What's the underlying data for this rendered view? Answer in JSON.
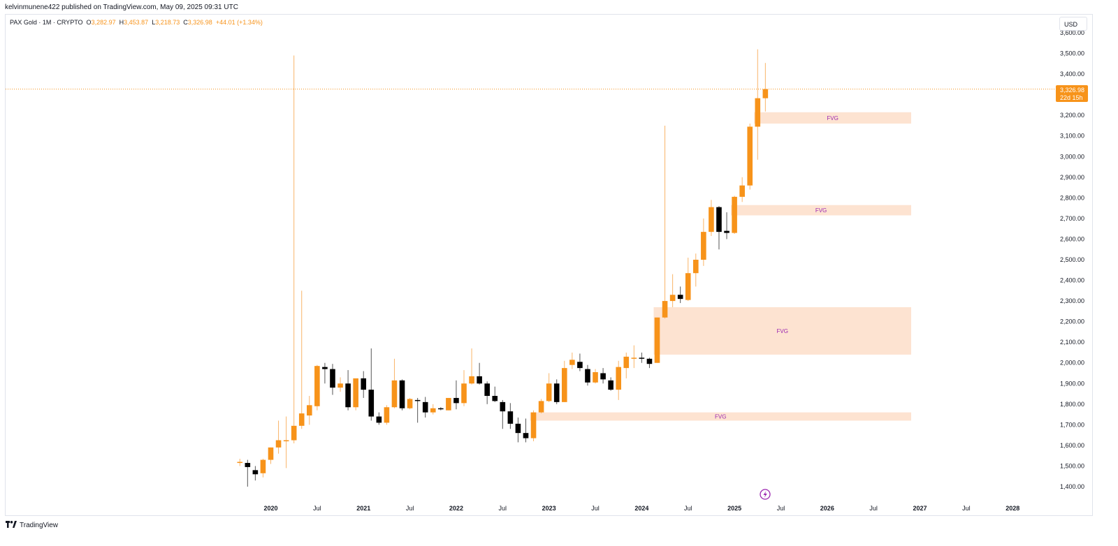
{
  "header": {
    "published": "kelvinmunene422 published on TradingView.com, May 09, 2025 09:31 UTC"
  },
  "legend": {
    "symbol": "PAX Gold · 1M · CRYPTO",
    "o_label": "O",
    "o": "3,282.97",
    "h_label": "H",
    "h": "3,453.87",
    "l_label": "L",
    "l": "3,218.73",
    "c_label": "C",
    "c": "3,326.98",
    "change": "+44.01 (+1.34%)"
  },
  "currency_button": "USD",
  "price_tag": {
    "price": "3,326.98",
    "countdown": "22d 15h"
  },
  "footer": {
    "logo_icon": "tradingview-logo-icon",
    "brand": "TradingView"
  },
  "colors": {
    "up": "#f7931a",
    "down": "#000000",
    "fvg": "#fde3d1",
    "fvg_text": "#9c27b0",
    "price_line": "#f7931a"
  },
  "chart_data": {
    "type": "candlestick",
    "title": "PAX Gold · 1M · CRYPTO",
    "interval": "1M",
    "ylim": [
      1350,
      3650
    ],
    "y_ticks": [
      "1,400.00",
      "1,500.00",
      "1,600.00",
      "1,700.00",
      "1,800.00",
      "1,900.00",
      "2,000.00",
      "2,100.00",
      "2,200.00",
      "2,300.00",
      "2,400.00",
      "2,500.00",
      "2,600.00",
      "2,700.00",
      "2,800.00",
      "2,900.00",
      "3,000.00",
      "3,100.00",
      "3,200.00",
      "3,300.00",
      "3,400.00",
      "3,500.00",
      "3,600.00"
    ],
    "y_tick_values": [
      1400,
      1500,
      1600,
      1700,
      1800,
      1900,
      2000,
      2100,
      2200,
      2300,
      2400,
      2500,
      2600,
      2700,
      2800,
      2900,
      3000,
      3100,
      3200,
      3300,
      3400,
      3500,
      3600
    ],
    "x_ticks": [
      {
        "label": "2020",
        "month": "2020-01"
      },
      {
        "label": "Jul",
        "month": "2020-07"
      },
      {
        "label": "2021",
        "month": "2021-01"
      },
      {
        "label": "Jul",
        "month": "2021-07"
      },
      {
        "label": "2022",
        "month": "2022-01"
      },
      {
        "label": "Jul",
        "month": "2022-07"
      },
      {
        "label": "2023",
        "month": "2023-01"
      },
      {
        "label": "Jul",
        "month": "2023-07"
      },
      {
        "label": "2024",
        "month": "2024-01"
      },
      {
        "label": "Jul",
        "month": "2024-07"
      },
      {
        "label": "2025",
        "month": "2025-01"
      },
      {
        "label": "Jul",
        "month": "2025-07"
      },
      {
        "label": "2026",
        "month": "2026-01"
      },
      {
        "label": "Jul",
        "month": "2026-07"
      },
      {
        "label": "2027",
        "month": "2027-01"
      },
      {
        "label": "Jul",
        "month": "2027-07"
      },
      {
        "label": "2028",
        "month": "2028-01"
      }
    ],
    "candles": [
      {
        "t": "2019-09",
        "o": 1515,
        "h": 1535,
        "l": 1500,
        "c": 1520
      },
      {
        "t": "2019-10",
        "o": 1515,
        "h": 1530,
        "l": 1400,
        "c": 1495
      },
      {
        "t": "2019-11",
        "o": 1480,
        "h": 1500,
        "l": 1430,
        "c": 1460
      },
      {
        "t": "2019-12",
        "o": 1465,
        "h": 1535,
        "l": 1445,
        "c": 1530
      },
      {
        "t": "2020-01",
        "o": 1530,
        "h": 1590,
        "l": 1510,
        "c": 1590
      },
      {
        "t": "2020-02",
        "o": 1590,
        "h": 1720,
        "l": 1560,
        "c": 1625
      },
      {
        "t": "2020-03",
        "o": 1620,
        "h": 1740,
        "l": 1490,
        "c": 1625
      },
      {
        "t": "2020-04",
        "o": 1625,
        "h": 3490,
        "l": 1610,
        "c": 1695
      },
      {
        "t": "2020-05",
        "o": 1695,
        "h": 2350,
        "l": 1680,
        "c": 1755
      },
      {
        "t": "2020-06",
        "o": 1745,
        "h": 1840,
        "l": 1700,
        "c": 1795
      },
      {
        "t": "2020-07",
        "o": 1790,
        "h": 1990,
        "l": 1770,
        "c": 1985
      },
      {
        "t": "2020-08",
        "o": 1980,
        "h": 2000,
        "l": 1900,
        "c": 1970
      },
      {
        "t": "2020-09",
        "o": 1970,
        "h": 1995,
        "l": 1845,
        "c": 1880
      },
      {
        "t": "2020-10",
        "o": 1880,
        "h": 1930,
        "l": 1860,
        "c": 1900
      },
      {
        "t": "2020-11",
        "o": 1900,
        "h": 1965,
        "l": 1770,
        "c": 1785
      },
      {
        "t": "2020-12",
        "o": 1785,
        "h": 1920,
        "l": 1770,
        "c": 1925
      },
      {
        "t": "2021-01",
        "o": 1925,
        "h": 1960,
        "l": 1830,
        "c": 1870
      },
      {
        "t": "2021-02",
        "o": 1870,
        "h": 2070,
        "l": 1720,
        "c": 1740
      },
      {
        "t": "2021-03",
        "o": 1740,
        "h": 1760,
        "l": 1700,
        "c": 1710
      },
      {
        "t": "2021-04",
        "o": 1710,
        "h": 1795,
        "l": 1700,
        "c": 1785
      },
      {
        "t": "2021-05",
        "o": 1785,
        "h": 2020,
        "l": 1780,
        "c": 1915
      },
      {
        "t": "2021-06",
        "o": 1915,
        "h": 1920,
        "l": 1770,
        "c": 1780
      },
      {
        "t": "2021-07",
        "o": 1780,
        "h": 1830,
        "l": 1775,
        "c": 1825
      },
      {
        "t": "2021-08",
        "o": 1820,
        "h": 1830,
        "l": 1710,
        "c": 1815
      },
      {
        "t": "2021-09",
        "o": 1810,
        "h": 1835,
        "l": 1735,
        "c": 1760
      },
      {
        "t": "2021-10",
        "o": 1760,
        "h": 1800,
        "l": 1750,
        "c": 1780
      },
      {
        "t": "2021-11",
        "o": 1780,
        "h": 1785,
        "l": 1770,
        "c": 1775
      },
      {
        "t": "2021-12",
        "o": 1770,
        "h": 1830,
        "l": 1770,
        "c": 1830
      },
      {
        "t": "2022-01",
        "o": 1830,
        "h": 1915,
        "l": 1775,
        "c": 1805
      },
      {
        "t": "2022-02",
        "o": 1805,
        "h": 1965,
        "l": 1790,
        "c": 1900
      },
      {
        "t": "2022-03",
        "o": 1900,
        "h": 2070,
        "l": 1895,
        "c": 1935
      },
      {
        "t": "2022-04",
        "o": 1935,
        "h": 2000,
        "l": 1895,
        "c": 1900
      },
      {
        "t": "2022-05",
        "o": 1900,
        "h": 1910,
        "l": 1800,
        "c": 1840
      },
      {
        "t": "2022-06",
        "o": 1840,
        "h": 1885,
        "l": 1810,
        "c": 1815
      },
      {
        "t": "2022-07",
        "o": 1810,
        "h": 1820,
        "l": 1680,
        "c": 1765
      },
      {
        "t": "2022-08",
        "o": 1765,
        "h": 1805,
        "l": 1680,
        "c": 1705
      },
      {
        "t": "2022-09",
        "o": 1705,
        "h": 1735,
        "l": 1615,
        "c": 1660
      },
      {
        "t": "2022-10",
        "o": 1660,
        "h": 1730,
        "l": 1615,
        "c": 1635
      },
      {
        "t": "2022-11",
        "o": 1635,
        "h": 1770,
        "l": 1620,
        "c": 1760
      },
      {
        "t": "2022-12",
        "o": 1760,
        "h": 1825,
        "l": 1755,
        "c": 1815
      },
      {
        "t": "2023-01",
        "o": 1815,
        "h": 1950,
        "l": 1810,
        "c": 1900
      },
      {
        "t": "2023-02",
        "o": 1900,
        "h": 1920,
        "l": 1800,
        "c": 1810
      },
      {
        "t": "2023-03",
        "o": 1810,
        "h": 2010,
        "l": 1810,
        "c": 1975
      },
      {
        "t": "2023-04",
        "o": 1990,
        "h": 2050,
        "l": 1970,
        "c": 2015
      },
      {
        "t": "2023-05",
        "o": 2005,
        "h": 2045,
        "l": 1960,
        "c": 1975
      },
      {
        "t": "2023-06",
        "o": 1970,
        "h": 1990,
        "l": 1890,
        "c": 1905
      },
      {
        "t": "2023-07",
        "o": 1905,
        "h": 1970,
        "l": 1900,
        "c": 1955
      },
      {
        "t": "2023-08",
        "o": 1950,
        "h": 1975,
        "l": 1900,
        "c": 1920
      },
      {
        "t": "2023-09",
        "o": 1915,
        "h": 1930,
        "l": 1865,
        "c": 1870
      },
      {
        "t": "2023-10",
        "o": 1870,
        "h": 2010,
        "l": 1820,
        "c": 1980
      },
      {
        "t": "2023-11",
        "o": 1975,
        "h": 2050,
        "l": 1925,
        "c": 2030
      },
      {
        "t": "2023-12",
        "o": 2025,
        "h": 2085,
        "l": 1975,
        "c": 2025
      },
      {
        "t": "2024-01",
        "o": 2025,
        "h": 2050,
        "l": 2000,
        "c": 2020
      },
      {
        "t": "2024-02",
        "o": 2020,
        "h": 2025,
        "l": 1975,
        "c": 1995
      },
      {
        "t": "2024-03",
        "o": 2000,
        "h": 2220,
        "l": 2000,
        "c": 2220
      },
      {
        "t": "2024-04",
        "o": 2220,
        "h": 3150,
        "l": 2215,
        "c": 2300
      },
      {
        "t": "2024-05",
        "o": 2300,
        "h": 2430,
        "l": 2270,
        "c": 2330
      },
      {
        "t": "2024-06",
        "o": 2330,
        "h": 2370,
        "l": 2290,
        "c": 2310
      },
      {
        "t": "2024-07",
        "o": 2305,
        "h": 2510,
        "l": 2300,
        "c": 2435
      },
      {
        "t": "2024-08",
        "o": 2435,
        "h": 2530,
        "l": 2370,
        "c": 2500
      },
      {
        "t": "2024-09",
        "o": 2500,
        "h": 2700,
        "l": 2470,
        "c": 2635
      },
      {
        "t": "2024-10",
        "o": 2635,
        "h": 2790,
        "l": 2615,
        "c": 2755
      },
      {
        "t": "2024-11",
        "o": 2755,
        "h": 2760,
        "l": 2550,
        "c": 2635
      },
      {
        "t": "2024-12",
        "o": 2640,
        "h": 2730,
        "l": 2600,
        "c": 2630
      },
      {
        "t": "2025-01",
        "o": 2630,
        "h": 2810,
        "l": 2625,
        "c": 2805
      },
      {
        "t": "2025-02",
        "o": 2805,
        "h": 2900,
        "l": 2780,
        "c": 2860
      },
      {
        "t": "2025-03",
        "o": 2860,
        "h": 3160,
        "l": 2840,
        "c": 3145
      },
      {
        "t": "2025-04",
        "o": 3145,
        "h": 3520,
        "l": 2985,
        "c": 3283
      },
      {
        "t": "2025-05",
        "o": 3282.97,
        "h": 3453.87,
        "l": 3218.73,
        "c": 3326.98
      }
    ],
    "zones": [
      {
        "label": "FVG",
        "start": "2025-04",
        "end": "2026-12",
        "low": 3160,
        "high": 3215
      },
      {
        "label": "FVG",
        "start": "2025-01",
        "end": "2026-12",
        "low": 2715,
        "high": 2765
      },
      {
        "label": "FVG",
        "start": "2024-03",
        "end": "2026-12",
        "low": 2040,
        "high": 2270
      },
      {
        "label": "FVG",
        "start": "2022-11",
        "end": "2026-12",
        "low": 1720,
        "high": 1760
      }
    ],
    "last_price": 3326.98
  }
}
